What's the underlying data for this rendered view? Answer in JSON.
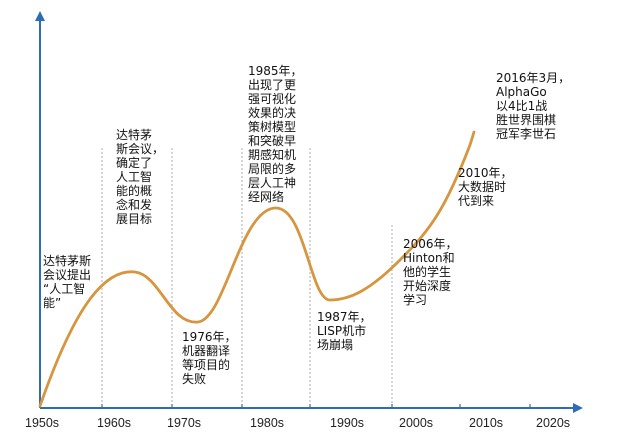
{
  "colors": {
    "axis": "#2e6db5",
    "curve": "#d6953f",
    "divider": "#999999"
  },
  "x_ticks": [
    "1950s",
    "1960s",
    "1970s",
    "1980s",
    "1990s",
    "2000s",
    "2010s",
    "2020s"
  ],
  "annotations": {
    "a1956": "达特茅斯\n会议提出\n“人工智\n能”",
    "a1960": "达特茅\n斯会议，\n确定了\n人工智\n能的概\n念和发\n展目标",
    "a1976": "1976年，\n机器翻译\n等项目的\n失败",
    "a1985": "1985年，\n出现了更\n强可视化\n效果的决\n策树模型\n和突破早\n期感知机\n局限的多\n层人工神\n经网络",
    "a1987": "1987年，\nLISP机市\n场崩塌",
    "a2006": "2006年，\nHinton和\n他的学生\n开始深度\n学习",
    "a2010": "2010年，\n大数据时\n代到来",
    "a2016": "2016年3月，\nAlphaGo\n以4比1战\n胜世界围棋\n冠军李世石"
  }
}
